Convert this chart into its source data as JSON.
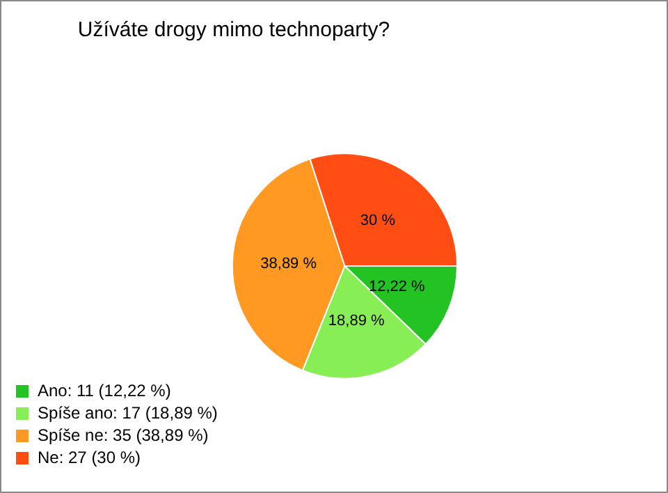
{
  "chart_data": {
    "type": "pie",
    "title": "Užíváte drogy mimo technoparty?",
    "categories": [
      "Ano: 11 (12,22 %)",
      "Spíše ano: 17 (18,89 %)",
      "Spíše ne: 35 (38,89 %)",
      "Ne: 27 (30 %)"
    ],
    "values": [
      12.22,
      18.89,
      38.89,
      30
    ],
    "colors": [
      "#22c322",
      "#88ee55",
      "#ff9922",
      "#ff4d14"
    ],
    "value_labels": [
      "12,22 %",
      "18,89 %",
      "38,89 %",
      "30 %"
    ],
    "legend": "bottom left"
  }
}
